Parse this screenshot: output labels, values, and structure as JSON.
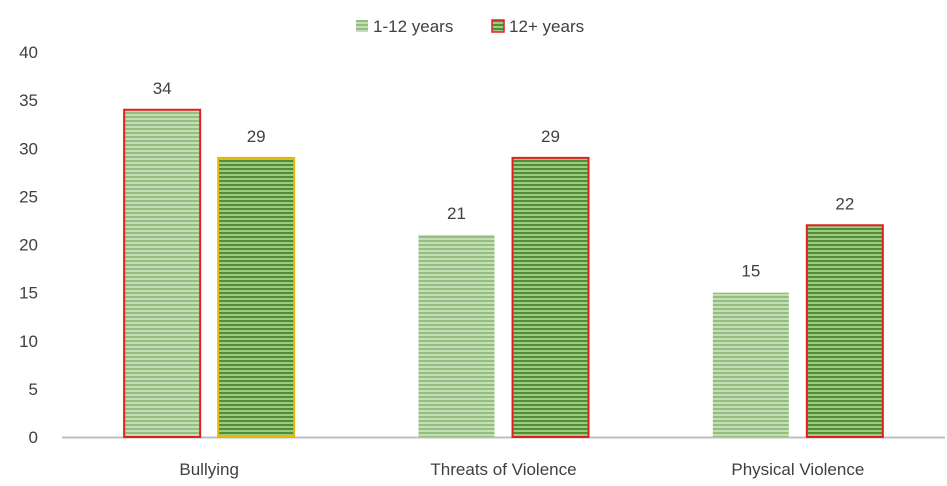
{
  "chart_data": {
    "type": "bar",
    "title": "",
    "xlabel": "",
    "ylabel": "",
    "categories": [
      "Bullying",
      "Threats of Violence",
      "Physical Violence"
    ],
    "series": [
      {
        "name": "1-12 years",
        "values": [
          34,
          21,
          15
        ],
        "color": "#9bc389",
        "border_colors": [
          "#e02020",
          "none",
          "none"
        ]
      },
      {
        "name": "12+ years",
        "values": [
          29,
          29,
          22
        ],
        "color": "#5e9e3f",
        "border_colors": [
          "#e8b700",
          "#e02020",
          "#e02020"
        ]
      }
    ],
    "ylim": [
      0,
      40
    ],
    "yticks": [
      0,
      5,
      10,
      15,
      20,
      25,
      30,
      35,
      40
    ],
    "grid": false,
    "legend_position": "top",
    "legend_swatch_borders": [
      "none",
      "#e02020"
    ],
    "data_labels": true
  }
}
